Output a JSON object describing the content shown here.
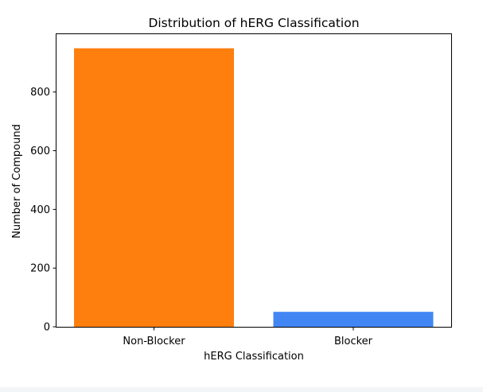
{
  "chart_data": {
    "type": "bar",
    "title": "Distribution of hERG Classification",
    "xlabel": "hERG Classification",
    "ylabel": "Number of Compound",
    "categories": [
      "Non-Blocker",
      "Blocker"
    ],
    "values": [
      949,
      51
    ],
    "colors": [
      "#ff7f0e",
      "#4286f4"
    ],
    "ylim": [
      0,
      997
    ],
    "yticks": [
      0,
      200,
      400,
      600,
      800
    ],
    "grid": false,
    "legend": "none"
  }
}
